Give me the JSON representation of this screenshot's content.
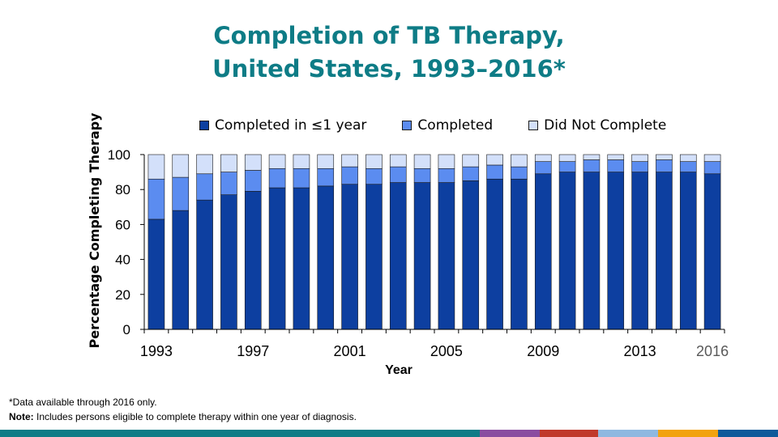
{
  "title_line1": "Completion of TB Therapy,",
  "title_line2": "United States, 1993–2016*",
  "footnote": "*Data available through 2016 only.",
  "note_label": "Note:",
  "note_text": " Includes persons eligible to complete therapy within one year of diagnosis.",
  "colors": {
    "title": "#0e7c86",
    "completed_1yr": "#0d3fa0",
    "completed": "#5b8cf0",
    "not_complete": "#d3e0fa"
  },
  "chart_data": {
    "type": "bar",
    "stacked": true,
    "years": [
      1993,
      1994,
      1995,
      1996,
      1997,
      1998,
      1999,
      2000,
      2001,
      2002,
      2003,
      2004,
      2005,
      2006,
      2007,
      2008,
      2009,
      2010,
      2011,
      2012,
      2013,
      2014,
      2015,
      2016
    ],
    "xtick_labels": [
      "1993",
      "1997",
      "2001",
      "2005",
      "2009",
      "2013",
      "2016"
    ],
    "xlabel": "Year",
    "ylabel": "Percentage Completing Therapy",
    "ylim": [
      0,
      100
    ],
    "yticks": [
      0,
      20,
      40,
      60,
      80,
      100
    ],
    "legend_position": "top",
    "series": [
      {
        "name": "Completed in ≤1 year",
        "color": "#0d3fa0",
        "values": [
          63,
          68,
          74,
          77,
          79,
          81,
          81,
          82,
          83,
          83,
          84,
          84,
          84,
          85,
          86,
          86,
          89,
          90,
          90,
          90,
          90,
          90,
          90,
          89
        ]
      },
      {
        "name": "Completed",
        "color": "#5b8cf0",
        "values": [
          23,
          19,
          15,
          13,
          12,
          11,
          11,
          10,
          10,
          9,
          9,
          8,
          8,
          8,
          8,
          7,
          7,
          6,
          7,
          7,
          6,
          7,
          6,
          7
        ]
      },
      {
        "name": "Did Not Complete",
        "color": "#d3e0fa",
        "values": [
          14,
          13,
          11,
          10,
          9,
          8,
          8,
          8,
          7,
          8,
          7,
          8,
          8,
          7,
          6,
          7,
          4,
          4,
          3,
          3,
          4,
          3,
          4,
          4
        ]
      }
    ]
  },
  "bottom_bar_colors": [
    "#0e7c86",
    "#8a4da0",
    "#c0392b",
    "#8fb8e0",
    "#f2a20e",
    "#0e5a9a"
  ]
}
